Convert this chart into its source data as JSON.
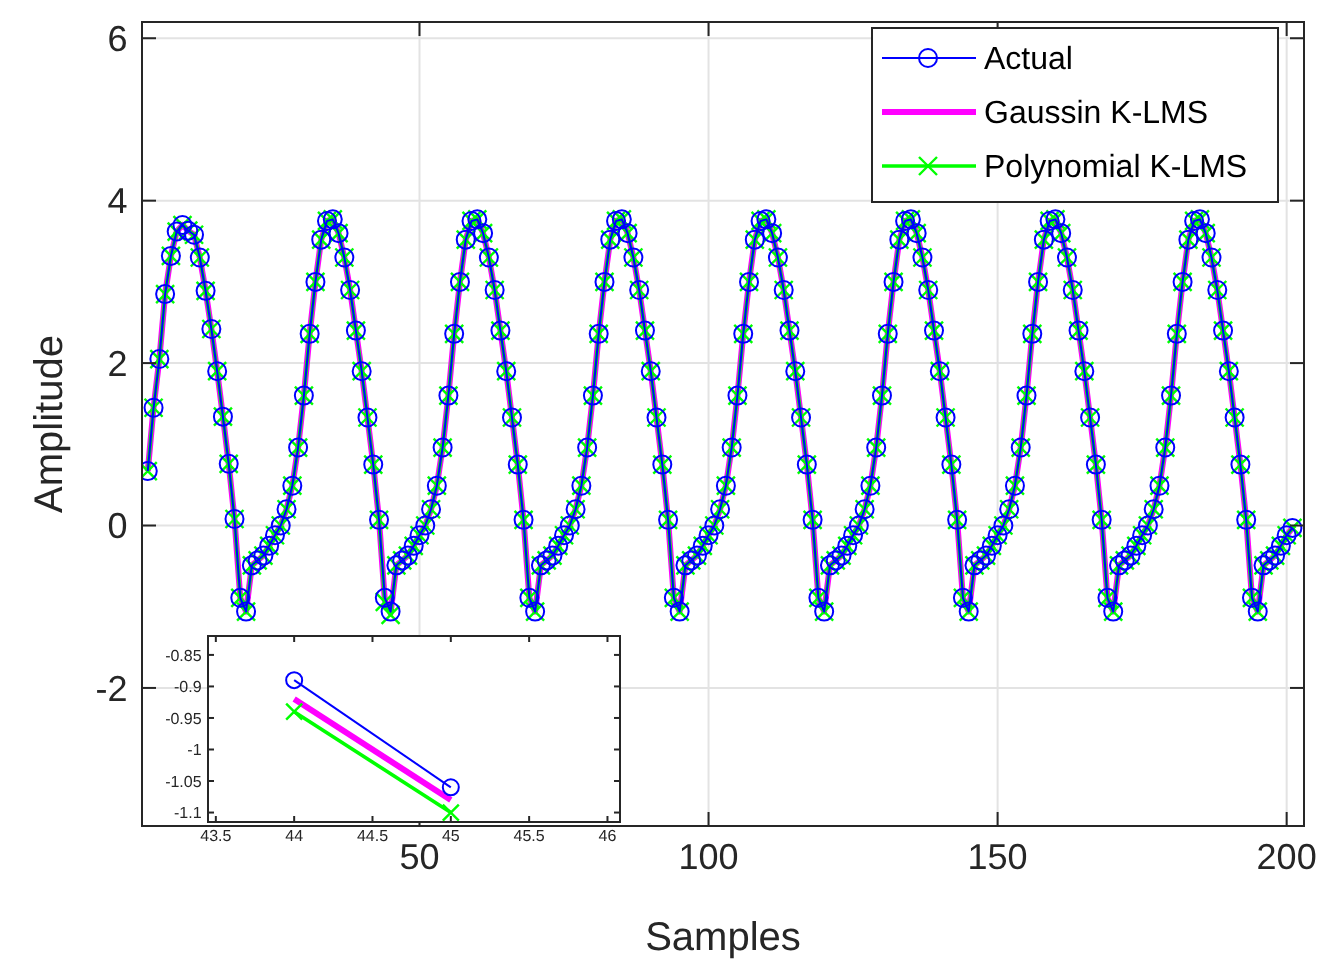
{
  "chart_data": [
    {
      "type": "line",
      "xlabel": "Samples",
      "ylabel": "Amplitude",
      "xlim": [
        2,
        203
      ],
      "ylim": [
        -3.7,
        6.2
      ],
      "xticks": [
        50,
        100,
        150,
        200
      ],
      "yticks": [
        -2,
        0,
        2,
        4,
        6
      ],
      "grid": true,
      "legend": "top right",
      "x": [
        3,
        4,
        5,
        6,
        7,
        8,
        9,
        10,
        11,
        12,
        13,
        14,
        15,
        16,
        17,
        18,
        19,
        20,
        21,
        22,
        23,
        24,
        25,
        26,
        27,
        28,
        29,
        30,
        31,
        32,
        33,
        34,
        35,
        36,
        37,
        38,
        39,
        40,
        41,
        42,
        43,
        44,
        45,
        46,
        47,
        48,
        49,
        50,
        51,
        52,
        53,
        54,
        55,
        56,
        57,
        58,
        59,
        60,
        61,
        62,
        63,
        64,
        65,
        66,
        67,
        68,
        69,
        70,
        71,
        72,
        73,
        74,
        75,
        76,
        77,
        78,
        79,
        80,
        81,
        82,
        83,
        84,
        85,
        86,
        87,
        88,
        89,
        90,
        91,
        92,
        93,
        94,
        95,
        96,
        97,
        98,
        99,
        100,
        101,
        102,
        103,
        104,
        105,
        106,
        107,
        108,
        109,
        110,
        111,
        112,
        113,
        114,
        115,
        116,
        117,
        118,
        119,
        120,
        121,
        122,
        123,
        124,
        125,
        126,
        127,
        128,
        129,
        130,
        131,
        132,
        133,
        134,
        135,
        136,
        137,
        138,
        139,
        140,
        141,
        142,
        143,
        144,
        145,
        146,
        147,
        148,
        149,
        150,
        151,
        152,
        153,
        154,
        155,
        156,
        157,
        158,
        159,
        160,
        161,
        162,
        163,
        164,
        165,
        166,
        167,
        168,
        169,
        170,
        171,
        172,
        173,
        174,
        175,
        176,
        177,
        178,
        179,
        180,
        181,
        182,
        183,
        184,
        185,
        186,
        187,
        188,
        189,
        190,
        191,
        192,
        193,
        194,
        195,
        196,
        197,
        198,
        199,
        200,
        201
      ],
      "series": [
        {
          "name": "Actual",
          "color": "#0000ff",
          "marker": "circle",
          "values": [
            0.67,
            1.45,
            2.05,
            2.85,
            3.32,
            3.62,
            3.7,
            3.63,
            3.58,
            3.3,
            2.89,
            2.42,
            1.9,
            1.34,
            0.76,
            0.08,
            -0.89,
            -1.06,
            -0.49,
            -0.43,
            -0.37,
            -0.25,
            -0.12,
            0,
            0.2,
            0.49,
            0.96,
            1.6,
            2.36,
            3,
            3.52,
            3.75,
            3.77,
            3.6,
            3.3,
            2.9,
            2.4,
            1.9,
            1.33,
            0.75,
            0.07,
            -0.89,
            -1.06,
            -0.49,
            -0.43,
            -0.37,
            -0.25,
            -0.12,
            0,
            0.2,
            0.49,
            0.96,
            1.6,
            2.36,
            3,
            3.52,
            3.75,
            3.77,
            3.6,
            3.3,
            2.9,
            2.4,
            1.9,
            1.33,
            0.75,
            0.07,
            -0.89,
            -1.06,
            -0.49,
            -0.43,
            -0.37,
            -0.25,
            -0.12,
            0,
            0.2,
            0.49,
            0.96,
            1.6,
            2.36,
            3,
            3.52,
            3.75,
            3.77,
            3.6,
            3.3,
            2.9,
            2.4,
            1.9,
            1.33,
            0.75,
            0.07,
            -0.89,
            -1.06,
            -0.49,
            -0.43,
            -0.37,
            -0.25,
            -0.12,
            0,
            0.2,
            0.49,
            0.96,
            1.6,
            2.36,
            3,
            3.52,
            3.75,
            3.77,
            3.6,
            3.3,
            2.9,
            2.4,
            1.9,
            1.33,
            0.75,
            0.07,
            -0.89,
            -1.06,
            -0.49,
            -0.43,
            -0.37,
            -0.25,
            -0.12,
            0,
            0.2,
            0.49,
            0.96,
            1.6,
            2.36,
            3,
            3.52,
            3.75,
            3.77,
            3.6,
            3.3,
            2.9,
            2.4,
            1.9,
            1.33,
            0.75,
            0.07,
            -0.89,
            -1.06,
            -0.49,
            -0.43,
            -0.37,
            -0.25,
            -0.12,
            0,
            0.2,
            0.49,
            0.96,
            1.6,
            2.36,
            3,
            3.52,
            3.75,
            3.77,
            3.6,
            3.3,
            2.9,
            2.4,
            1.9,
            1.33,
            0.75,
            0.07,
            -0.89,
            -1.06,
            -0.49,
            -0.43,
            -0.37,
            -0.25,
            -0.12,
            0,
            0.2,
            0.49,
            0.96,
            1.6,
            2.36,
            3,
            3.52,
            3.75,
            3.77,
            3.6,
            3.3,
            2.9,
            2.4,
            1.9,
            1.33,
            0.75,
            0.07,
            -0.89,
            -1.06,
            -0.49,
            -0.43,
            -0.37,
            -0.25,
            -0.12,
            -0.03
          ]
        },
        {
          "name": "Gaussin K-LMS",
          "color": "#ff00ff",
          "values": [
            0.67,
            1.45,
            2.05,
            2.85,
            3.32,
            3.62,
            3.7,
            3.63,
            3.58,
            3.3,
            2.89,
            2.42,
            1.9,
            1.34,
            0.76,
            0.08,
            -0.89,
            -1.06,
            -0.49,
            -0.43,
            -0.37,
            -0.25,
            -0.12,
            0,
            0.2,
            0.49,
            0.96,
            1.6,
            2.36,
            3,
            3.52,
            3.75,
            3.77,
            3.6,
            3.3,
            2.9,
            2.4,
            1.9,
            1.33,
            0.75,
            0.07,
            -0.92,
            -1.08,
            -0.49,
            -0.43,
            -0.37,
            -0.25,
            -0.12,
            0,
            0.2,
            0.49,
            0.96,
            1.6,
            2.36,
            3,
            3.52,
            3.75,
            3.77,
            3.6,
            3.3,
            2.9,
            2.4,
            1.9,
            1.33,
            0.75,
            0.07,
            -0.89,
            -1.06,
            -0.49,
            -0.43,
            -0.37,
            -0.25,
            -0.12,
            0,
            0.2,
            0.49,
            0.96,
            1.6,
            2.36,
            3,
            3.52,
            3.75,
            3.77,
            3.6,
            3.3,
            2.9,
            2.4,
            1.9,
            1.33,
            0.75,
            0.07,
            -0.89,
            -1.06,
            -0.49,
            -0.43,
            -0.37,
            -0.25,
            -0.12,
            0,
            0.2,
            0.49,
            0.96,
            1.6,
            2.36,
            3,
            3.52,
            3.75,
            3.77,
            3.6,
            3.3,
            2.9,
            2.4,
            1.9,
            1.33,
            0.75,
            0.07,
            -0.89,
            -1.06,
            -0.49,
            -0.43,
            -0.37,
            -0.25,
            -0.12,
            0,
            0.2,
            0.49,
            0.96,
            1.6,
            2.36,
            3,
            3.52,
            3.75,
            3.77,
            3.6,
            3.3,
            2.9,
            2.4,
            1.9,
            1.33,
            0.75,
            0.07,
            -0.89,
            -1.06,
            -0.49,
            -0.43,
            -0.37,
            -0.25,
            -0.12,
            0,
            0.2,
            0.49,
            0.96,
            1.6,
            2.36,
            3,
            3.52,
            3.75,
            3.77,
            3.6,
            3.3,
            2.9,
            2.4,
            1.9,
            1.33,
            0.75,
            0.07,
            -0.89,
            -1.06,
            -0.49,
            -0.43,
            -0.37,
            -0.25,
            -0.12,
            0,
            0.2,
            0.49,
            0.96,
            1.6,
            2.36,
            3,
            3.52,
            3.75,
            3.77,
            3.6,
            3.3,
            2.9,
            2.4,
            1.9,
            1.33,
            0.75,
            0.07,
            -0.89,
            -1.06,
            -0.49,
            -0.43,
            -0.37,
            -0.25,
            -0.12,
            -0.03
          ]
        },
        {
          "name": "Polynomial K-LMS",
          "color": "#00ff00",
          "marker": "cross",
          "values": [
            0.67,
            1.45,
            2.05,
            2.85,
            3.32,
            3.62,
            3.7,
            3.63,
            3.58,
            3.3,
            2.89,
            2.42,
            1.9,
            1.34,
            0.76,
            0.08,
            -0.89,
            -1.06,
            -0.49,
            -0.43,
            -0.37,
            -0.25,
            -0.12,
            0,
            0.2,
            0.49,
            0.96,
            1.6,
            2.36,
            3,
            3.52,
            3.75,
            3.77,
            3.6,
            3.3,
            2.9,
            2.4,
            1.9,
            1.33,
            0.75,
            0.07,
            -0.94,
            -1.1,
            -0.49,
            -0.43,
            -0.37,
            -0.25,
            -0.12,
            0,
            0.2,
            0.49,
            0.96,
            1.6,
            2.36,
            3,
            3.52,
            3.75,
            3.77,
            3.6,
            3.3,
            2.9,
            2.4,
            1.9,
            1.33,
            0.75,
            0.07,
            -0.89,
            -1.06,
            -0.49,
            -0.43,
            -0.37,
            -0.25,
            -0.12,
            0,
            0.2,
            0.49,
            0.96,
            1.6,
            2.36,
            3,
            3.52,
            3.75,
            3.77,
            3.6,
            3.3,
            2.9,
            2.4,
            1.9,
            1.33,
            0.75,
            0.07,
            -0.89,
            -1.06,
            -0.49,
            -0.43,
            -0.37,
            -0.25,
            -0.12,
            0,
            0.2,
            0.49,
            0.96,
            1.6,
            2.36,
            3,
            3.52,
            3.75,
            3.77,
            3.6,
            3.3,
            2.9,
            2.4,
            1.9,
            1.33,
            0.75,
            0.07,
            -0.89,
            -1.06,
            -0.49,
            -0.43,
            -0.37,
            -0.25,
            -0.12,
            0,
            0.2,
            0.49,
            0.96,
            1.6,
            2.36,
            3,
            3.52,
            3.75,
            3.77,
            3.6,
            3.3,
            2.9,
            2.4,
            1.9,
            1.33,
            0.75,
            0.07,
            -0.89,
            -1.06,
            -0.49,
            -0.43,
            -0.37,
            -0.25,
            -0.12,
            0,
            0.2,
            0.49,
            0.96,
            1.6,
            2.36,
            3,
            3.52,
            3.75,
            3.77,
            3.6,
            3.3,
            2.9,
            2.4,
            1.9,
            1.33,
            0.75,
            0.07,
            -0.89,
            -1.06,
            -0.49,
            -0.43,
            -0.37,
            -0.25,
            -0.12,
            0,
            0.2,
            0.49,
            0.96,
            1.6,
            2.36,
            3,
            3.52,
            3.75,
            3.77,
            3.6,
            3.3,
            2.9,
            2.4,
            1.9,
            1.33,
            0.75,
            0.07,
            -0.89,
            -1.06,
            -0.49,
            -0.43,
            -0.37,
            -0.25,
            -0.12,
            -0.03
          ]
        }
      ]
    },
    {
      "type": "line",
      "xlim": [
        43.45,
        46.08
      ],
      "ylim": [
        -1.115,
        -0.82
      ],
      "xticks": [
        43.5,
        44,
        44.5,
        45,
        45.5,
        46
      ],
      "yticks": [
        -1.1,
        -1.05,
        -1,
        -0.95,
        -0.9,
        -0.85
      ],
      "x": [
        44,
        45
      ],
      "series": [
        {
          "color": "#0000ff",
          "marker": "circle",
          "values": [
            -0.89,
            -1.06
          ]
        },
        {
          "color": "#ff00ff",
          "values": [
            -0.92,
            -1.08
          ]
        },
        {
          "color": "#00ff00",
          "marker": "cross",
          "values": [
            -0.94,
            -1.1
          ]
        }
      ]
    }
  ]
}
